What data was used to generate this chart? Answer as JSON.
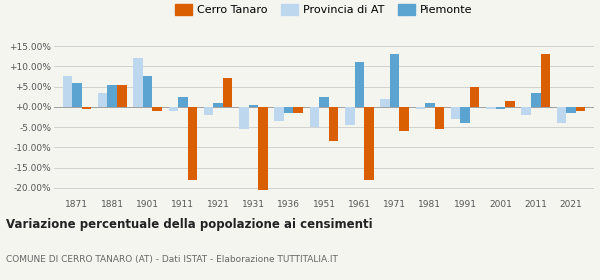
{
  "years": [
    1871,
    1881,
    1901,
    1911,
    1921,
    1931,
    1936,
    1951,
    1961,
    1971,
    1981,
    1991,
    2001,
    2011,
    2021
  ],
  "cerro_tanaro": [
    -0.5,
    5.5,
    -1.0,
    -18.0,
    7.0,
    -20.5,
    -1.5,
    -8.5,
    -18.0,
    -6.0,
    -5.5,
    5.0,
    1.5,
    13.0,
    -1.0
  ],
  "provincia_at": [
    7.5,
    3.5,
    12.0,
    -1.0,
    -2.0,
    -5.5,
    -3.5,
    -5.0,
    -4.5,
    2.0,
    -0.5,
    -3.0,
    -0.5,
    -2.0,
    -4.0
  ],
  "piemonte": [
    6.0,
    5.5,
    7.5,
    2.5,
    1.0,
    0.5,
    -1.5,
    2.5,
    11.0,
    13.0,
    1.0,
    -4.0,
    -0.5,
    3.5,
    -1.5
  ],
  "cerro_color": "#d95f02",
  "provincia_color": "#bdd7ee",
  "piemonte_color": "#5ba3d0",
  "title": "Variazione percentuale della popolazione ai censimenti",
  "subtitle": "COMUNE DI CERRO TANARO (AT) - Dati ISTAT - Elaborazione TUTTITALIA.IT",
  "ylim": [
    -22,
    16
  ],
  "yticks": [
    -20.0,
    -15.0,
    -10.0,
    -5.0,
    0.0,
    5.0,
    10.0,
    15.0
  ],
  "bar_width": 0.27,
  "bg_color": "#f5f5f0",
  "grid_color": "#cccccc"
}
